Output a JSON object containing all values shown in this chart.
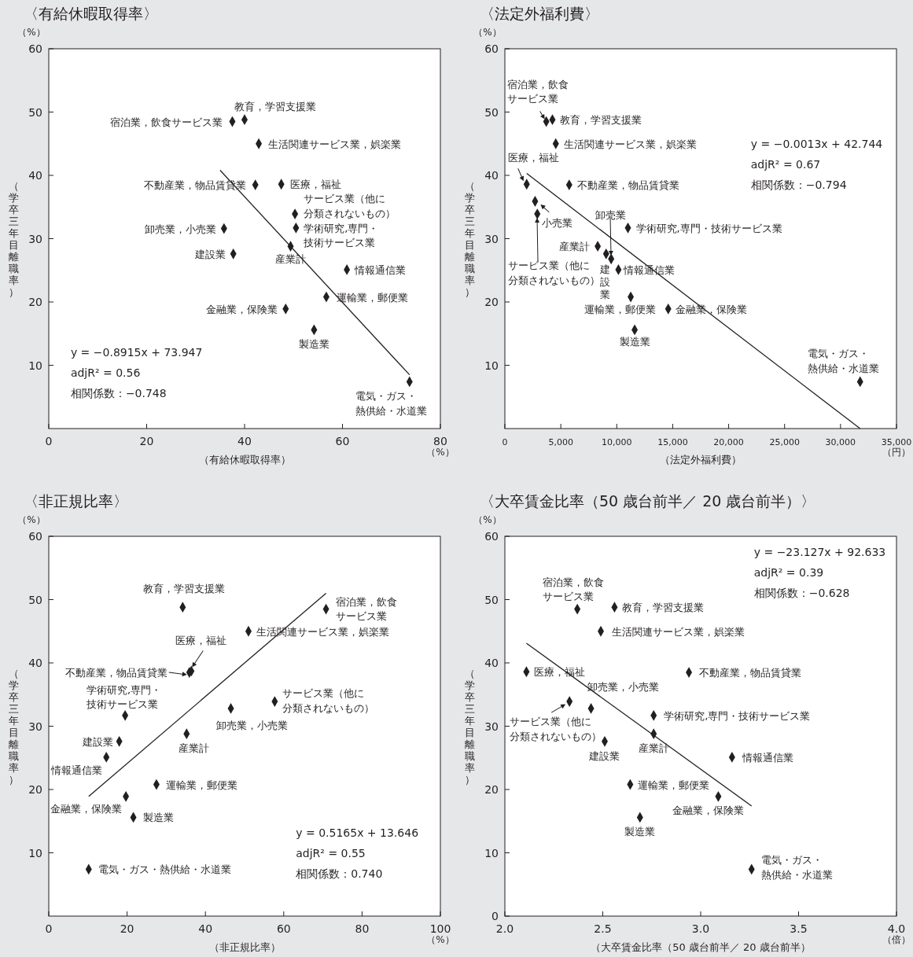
{
  "chart_data": [
    {
      "type": "scatter",
      "title": "〈有給休暇取得率〉",
      "xlabel": "（有給休暇取得率）",
      "ylabel": "（学卒三年目離職率）",
      "marker": "diamond",
      "xlim": [
        0,
        80
      ],
      "xticks": [
        0,
        20,
        40,
        60,
        80
      ],
      "ylim": [
        0,
        60
      ],
      "yticks": [
        10,
        20,
        30,
        40,
        50,
        60
      ],
      "series": [
        {
          "type": "scatter",
          "color": "#231f20",
          "x": [
            37.5,
            40.0,
            42.9,
            42.2,
            47.5,
            50.3,
            50.5,
            35.8,
            37.7,
            49.4,
            60.9,
            56.7,
            48.4,
            54.2,
            73.7
          ],
          "values": [
            48.5,
            48.8,
            45.0,
            38.5,
            38.6,
            33.9,
            31.7,
            31.6,
            27.6,
            28.8,
            25.1,
            20.8,
            18.9,
            15.6,
            7.4
          ]
        },
        {
          "type": "line",
          "marker": "none",
          "color": "#231f20",
          "x": [
            35.0,
            73.7
          ],
          "values": [
            40.8,
            8.5
          ]
        }
      ],
      "annotations": [
        "（%）",
        "（%）",
        "y = −0.8915x + 73.947",
        "adjR² = 0.56",
        "相関係数：−0.748",
        {
          "text": "宿泊業，飲食サービス業",
          "x": 37.5,
          "y": 48.5
        },
        {
          "text": "教育，学習支援業",
          "x": 40.0,
          "y": 48.8
        },
        {
          "text": "生活関連サービス業，娯楽業",
          "x": 42.9,
          "y": 45.0
        },
        {
          "text": "不動産業，物品賃貸業",
          "x": 42.2,
          "y": 38.5
        },
        {
          "text": "医療，福祉",
          "x": 47.5,
          "y": 38.6
        },
        {
          "text": "サービス業（他に分類されないもの）",
          "x": 50.3,
          "y": 33.9
        },
        {
          "text": "学術研究,専門・技術サービス業",
          "x": 50.5,
          "y": 31.7
        },
        {
          "text": "卸売業，小売業",
          "x": 35.8,
          "y": 31.6
        },
        {
          "text": "建設業",
          "x": 37.7,
          "y": 27.6
        },
        {
          "text": "産業計",
          "x": 49.4,
          "y": 28.8
        },
        {
          "text": "情報通信業",
          "x": 60.9,
          "y": 25.1
        },
        {
          "text": "運輸業，郵便業",
          "x": 56.7,
          "y": 20.8
        },
        {
          "text": "金融業，保険業",
          "x": 48.4,
          "y": 18.9
        },
        {
          "text": "製造業",
          "x": 54.2,
          "y": 15.6
        },
        {
          "text": "電気・ガス・熱供給・水道業",
          "x": 73.7,
          "y": 7.4
        }
      ]
    },
    {
      "type": "scatter",
      "title": "〈法定外福利費〉",
      "xlabel": "（法定外福利費）",
      "ylabel": "（学卒三年目離職率）",
      "marker": "diamond",
      "xlim": [
        0,
        35000
      ],
      "xticks": [
        0,
        {
          "value": 5000,
          "label": "5,000"
        },
        {
          "value": 10000,
          "label": "10,000"
        },
        {
          "value": 15000,
          "label": "15,000"
        },
        {
          "value": 20000,
          "label": "20,000"
        },
        {
          "value": 25000,
          "label": "25,000"
        },
        {
          "value": 30000,
          "label": "30,000"
        },
        {
          "value": 35000,
          "label": "35,000"
        }
      ],
      "ylim": [
        0,
        60
      ],
      "yticks": [
        10,
        20,
        30,
        40,
        50,
        60
      ],
      "series": [
        {
          "type": "scatter",
          "color": "#231f20",
          "x": [
            3700,
            4250,
            4550,
            5750,
            1950,
            2900,
            11000,
            9500,
            2700,
            9050,
            8300,
            10150,
            11250,
            14600,
            11600,
            31750
          ],
          "values": [
            48.5,
            48.8,
            45.0,
            38.5,
            38.6,
            33.9,
            31.7,
            26.8,
            35.9,
            27.6,
            28.8,
            25.1,
            20.8,
            18.9,
            15.6,
            7.4
          ]
        },
        {
          "type": "line",
          "marker": "none",
          "color": "#231f20",
          "x": [
            1950,
            31750
          ],
          "values": [
            40.3,
            0
          ]
        }
      ],
      "annotations": [
        "（%）",
        "（円）",
        "y = −0.0013x + 42.744",
        "adjR² = 0.67",
        "相関係数：−0.794",
        "サービス業（他に分類されないもの）",
        "卸売業",
        {
          "text": "宿泊業，飲食サービス業",
          "x": 3700,
          "y": 48.5
        },
        {
          "text": "教育，学習支援業",
          "x": 4250,
          "y": 48.8
        },
        {
          "text": "生活関連サービス業，娯楽業",
          "x": 4550,
          "y": 45.0
        },
        {
          "text": "不動産業，物品賃貸業",
          "x": 5750,
          "y": 38.5
        },
        {
          "text": "医療，福祉",
          "x": 1950,
          "y": 38.6
        },
        {
          "text": "学術研究,専門・技術サービス業",
          "x": 11000,
          "y": 31.7
        },
        {
          "text": "小売業",
          "x": 2700,
          "y": 35.9
        },
        {
          "text": "建設業",
          "x": 9050,
          "y": 27.6
        },
        {
          "text": "産業計",
          "x": 8300,
          "y": 28.8
        },
        {
          "text": "情報通信業",
          "x": 10150,
          "y": 25.1
        },
        {
          "text": "運輸業，郵便業",
          "x": 11250,
          "y": 20.8
        },
        {
          "text": "金融業，保険業",
          "x": 14600,
          "y": 18.9
        },
        {
          "text": "製造業",
          "x": 11600,
          "y": 15.6
        },
        {
          "text": "電気・ガス・熱供給・水道業",
          "x": 31750,
          "y": 7.4
        }
      ]
    },
    {
      "type": "scatter",
      "title": "〈非正規比率〉",
      "xlabel": "（非正規比率）",
      "ylabel": "（学卒三年目離職率）",
      "marker": "diamond",
      "xlim": [
        0,
        100
      ],
      "xticks": [
        0,
        20,
        40,
        60,
        80,
        100
      ],
      "ylim": [
        0,
        60
      ],
      "yticks": [
        10,
        20,
        30,
        40,
        50,
        60
      ],
      "series": [
        {
          "type": "scatter",
          "color": "#231f20",
          "x": [
            70.8,
            34.2,
            51.0,
            35.9,
            36.4,
            57.7,
            19.5,
            46.5,
            18.0,
            35.2,
            14.7,
            27.5,
            19.7,
            21.6,
            10.2
          ],
          "values": [
            48.5,
            48.8,
            45.0,
            38.5,
            38.7,
            33.9,
            31.7,
            32.8,
            27.6,
            28.8,
            25.1,
            20.8,
            18.9,
            15.6,
            7.4
          ]
        },
        {
          "type": "line",
          "marker": "none",
          "color": "#231f20",
          "x": [
            10.2,
            70.8
          ],
          "values": [
            18.9,
            51.0
          ]
        }
      ],
      "annotations": [
        "（%）",
        "（%）",
        "y = 0.5165x + 13.646",
        "adjR² = 0.55",
        "相関係数：0.740",
        {
          "text": "宿泊業，飲食サービス業",
          "x": 70.8,
          "y": 48.5
        },
        {
          "text": "教育，学習支援業",
          "x": 34.2,
          "y": 48.8
        },
        {
          "text": "生活関連サービス業，娯楽業",
          "x": 51.0,
          "y": 45.0
        },
        {
          "text": "不動産業，物品賃貸業",
          "x": 35.9,
          "y": 38.5
        },
        {
          "text": "医療，福祉",
          "x": 36.4,
          "y": 38.7
        },
        {
          "text": "サービス業（他に分類されないもの）",
          "x": 57.7,
          "y": 33.9
        },
        {
          "text": "学術研究,専門・技術サービス業",
          "x": 19.5,
          "y": 31.7
        },
        {
          "text": "卸売業，小売業",
          "x": 46.5,
          "y": 32.8
        },
        {
          "text": "建設業",
          "x": 18.0,
          "y": 27.6
        },
        {
          "text": "産業計",
          "x": 35.2,
          "y": 28.8
        },
        {
          "text": "情報通信業",
          "x": 14.7,
          "y": 25.1
        },
        {
          "text": "運輸業，郵便業",
          "x": 27.5,
          "y": 20.8
        },
        {
          "text": "金融業，保険業",
          "x": 19.7,
          "y": 18.9
        },
        {
          "text": "製造業",
          "x": 21.6,
          "y": 15.6
        },
        {
          "text": "電気・ガス・熱供給・水道業",
          "x": 10.2,
          "y": 7.4
        }
      ]
    },
    {
      "type": "scatter",
      "title": "〈大卒賃金比率（50 歳台前半／ 20 歳台前半）〉",
      "xlabel": "（大卒賃金比率（50 歳台前半／ 20 歳台前半）",
      "ylabel": "（学卒三年目離職率）",
      "marker": "diamond",
      "xlim": [
        2,
        4
      ],
      "xticks": [
        {
          "value": 2,
          "label": "2.0"
        },
        {
          "value": 2.5,
          "label": "2.5"
        },
        {
          "value": 3,
          "label": "3.0"
        },
        {
          "value": 3.5,
          "label": "3.5"
        },
        {
          "value": 4,
          "label": "4.0"
        }
      ],
      "ylim": [
        0,
        60
      ],
      "yticks": [
        0,
        10,
        20,
        30,
        40,
        50,
        60
      ],
      "series": [
        {
          "type": "scatter",
          "color": "#231f20",
          "x": [
            2.37,
            2.56,
            2.49,
            2.94,
            2.11,
            2.33,
            2.76,
            2.44,
            2.51,
            2.76,
            3.16,
            2.64,
            3.09,
            2.69,
            3.26
          ],
          "values": [
            48.5,
            48.8,
            45.0,
            38.5,
            38.6,
            33.9,
            31.7,
            32.8,
            27.6,
            28.8,
            25.1,
            20.8,
            18.9,
            15.6,
            7.4
          ]
        },
        {
          "type": "line",
          "marker": "none",
          "color": "#231f20",
          "x": [
            2.11,
            3.26
          ],
          "values": [
            43.1,
            17.4
          ]
        }
      ],
      "annotations": [
        "（%）",
        "（倍）",
        "y = −23.127x + 92.633",
        "adjR² = 0.39",
        "相関係数：−0.628",
        {
          "text": "宿泊業，飲食サービス業",
          "x": 2.37,
          "y": 48.5
        },
        {
          "text": "教育，学習支援業",
          "x": 2.56,
          "y": 48.8
        },
        {
          "text": "生活関連サービス業，娯楽業",
          "x": 2.49,
          "y": 45.0
        },
        {
          "text": "不動産業，物品賃貸業",
          "x": 2.94,
          "y": 38.5
        },
        {
          "text": "医療，福祉",
          "x": 2.11,
          "y": 38.6
        },
        {
          "text": "サービス業（他に分類されないもの）",
          "x": 2.33,
          "y": 33.9
        },
        {
          "text": "学術研究,専門・技術サービス業",
          "x": 2.76,
          "y": 31.7
        },
        {
          "text": "卸売業，小売業",
          "x": 2.44,
          "y": 32.8
        },
        {
          "text": "建設業",
          "x": 2.51,
          "y": 27.6
        },
        {
          "text": "産業計",
          "x": 2.76,
          "y": 28.8
        },
        {
          "text": "情報通信業",
          "x": 3.16,
          "y": 25.1
        },
        {
          "text": "運輸業，郵便業",
          "x": 2.64,
          "y": 20.8
        },
        {
          "text": "金融業，保険業",
          "x": 3.09,
          "y": 18.9
        },
        {
          "text": "製造業",
          "x": 2.69,
          "y": 15.6
        },
        {
          "text": "電気・ガス・熱供給・水道業",
          "x": 3.26,
          "y": 7.4
        }
      ]
    }
  ]
}
